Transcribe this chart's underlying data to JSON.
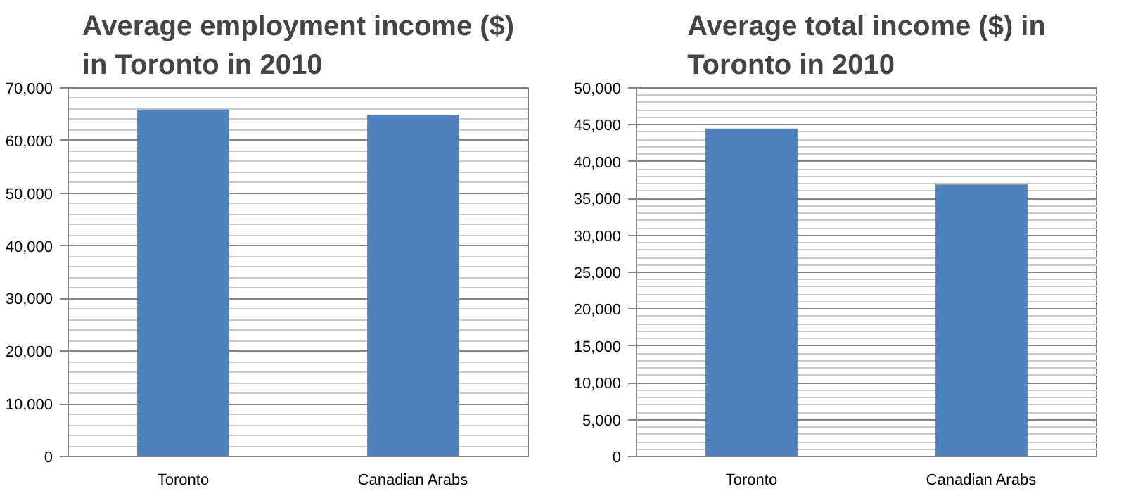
{
  "chart_data": [
    {
      "type": "bar",
      "title": "Average employment income ($) in Toronto in 2010",
      "categories": [
        "Toronto",
        "Canadian Arabs"
      ],
      "values": [
        65900,
        64900
      ],
      "color": "#4f81bd",
      "ylim": [
        0,
        70000
      ],
      "yticks": [
        0,
        {
          "value": 10000,
          "label": "10,000"
        },
        {
          "value": 20000,
          "label": "20,000"
        },
        {
          "value": 30000,
          "label": "30,000"
        },
        {
          "value": 40000,
          "label": "40,000"
        },
        {
          "value": 50000,
          "label": "50,000"
        },
        {
          "value": 60000,
          "label": "60,000"
        },
        {
          "value": 70000,
          "label": "70,000"
        }
      ],
      "grid": "y"
    },
    {
      "type": "bar",
      "title": "Average total income ($) in Toronto in 2010",
      "categories": [
        "Toronto",
        "Canadian Arabs"
      ],
      "values": [
        44500,
        36900
      ],
      "color": "#4f81bd",
      "ylim": [
        0,
        50000
      ],
      "yticks": [
        0,
        {
          "value": 5000,
          "label": "5,000"
        },
        {
          "value": 10000,
          "label": "10,000"
        },
        {
          "value": 15000,
          "label": "15,000"
        },
        {
          "value": 20000,
          "label": "20,000"
        },
        {
          "value": 25000,
          "label": "25,000"
        },
        {
          "value": 30000,
          "label": "30,000"
        },
        {
          "value": 35000,
          "label": "35,000"
        },
        {
          "value": 40000,
          "label": "40,000"
        },
        {
          "value": 45000,
          "label": "45,000"
        },
        {
          "value": 50000,
          "label": "50,000"
        }
      ],
      "grid": "y"
    }
  ]
}
